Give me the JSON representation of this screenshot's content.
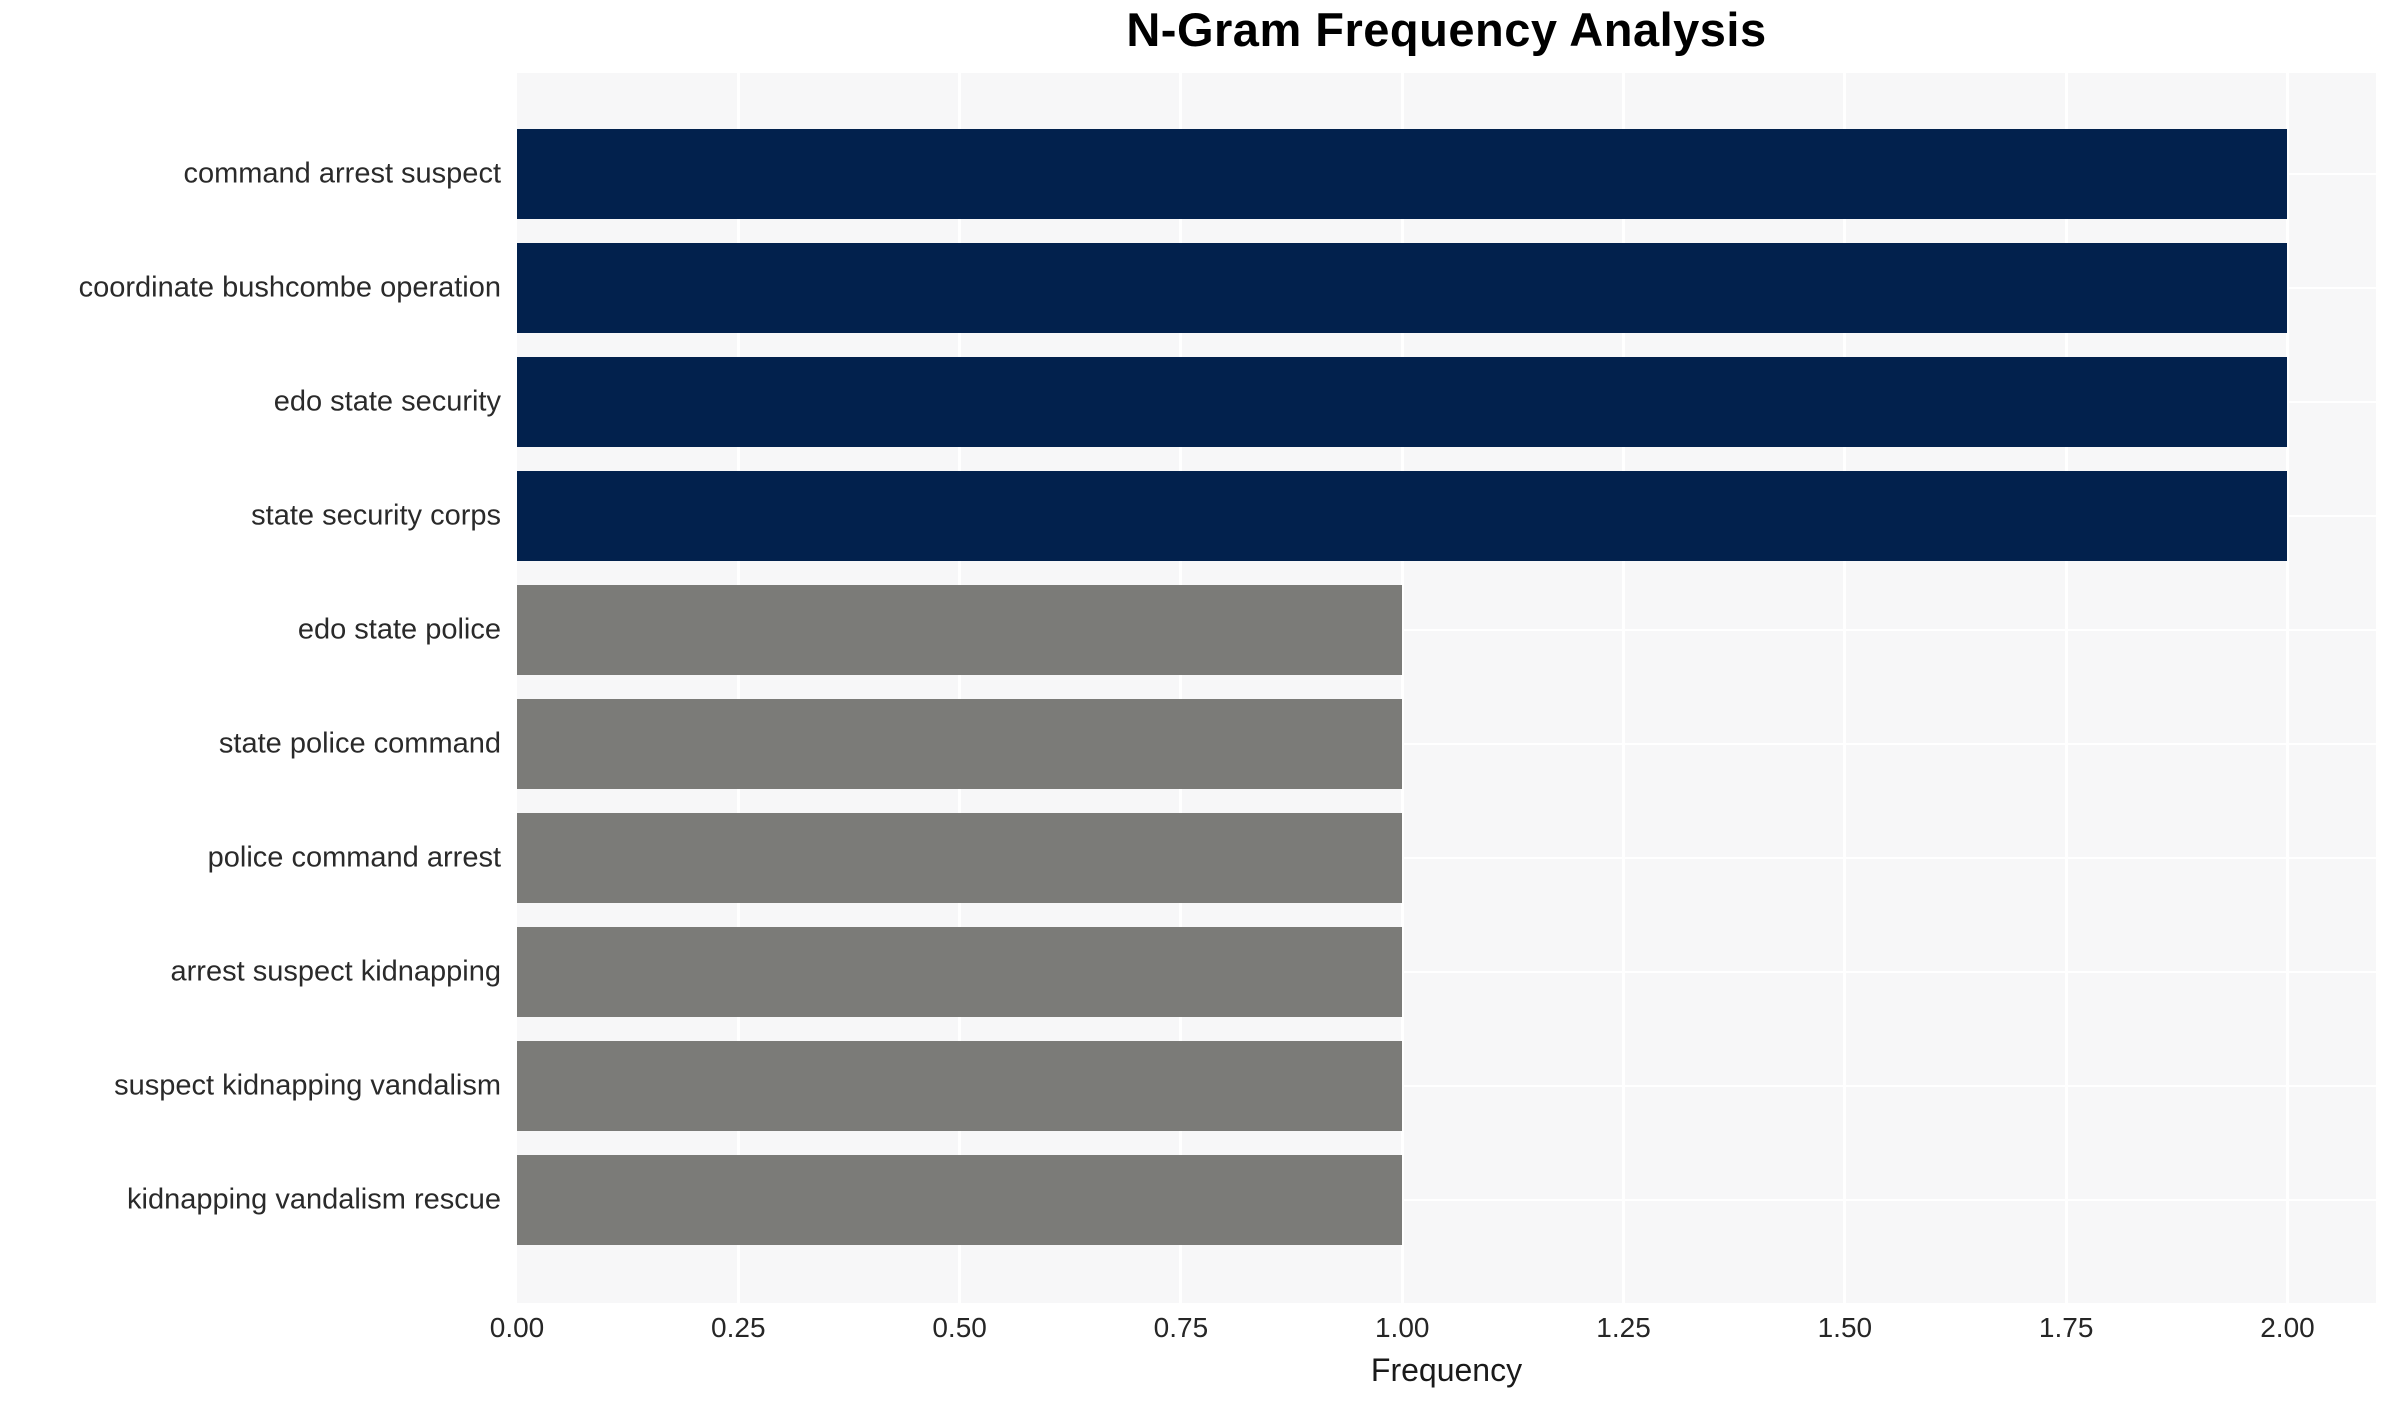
{
  "title": "N-Gram Frequency Analysis",
  "colors": {
    "bar_high": "#02214D",
    "bar_low": "#7B7B78",
    "plot_bg": "#F7F7F8",
    "grid": "#FFFFFF",
    "title_text": "#000000",
    "label_text": "#2A2A2A"
  },
  "chart_data": {
    "type": "bar",
    "orientation": "horizontal",
    "title": "N-Gram Frequency Analysis",
    "xlabel": "Frequency",
    "ylabel": "",
    "categories": [
      "command arrest suspect",
      "coordinate bushcombe operation",
      "edo state security",
      "state security corps",
      "edo state police",
      "state police command",
      "police command arrest",
      "arrest suspect kidnapping",
      "suspect kidnapping vandalism",
      "kidnapping vandalism rescue"
    ],
    "values": [
      2,
      2,
      2,
      2,
      1,
      1,
      1,
      1,
      1,
      1
    ],
    "bar_colors": [
      "#02214D",
      "#02214D",
      "#02214D",
      "#02214D",
      "#7B7B78",
      "#7B7B78",
      "#7B7B78",
      "#7B7B78",
      "#7B7B78",
      "#7B7B78"
    ],
    "xlim": [
      0,
      2.1
    ],
    "xticks": [
      0.0,
      0.25,
      0.5,
      0.75,
      1.0,
      1.25,
      1.5,
      1.75,
      2.0
    ],
    "xtick_labels": [
      "0.00",
      "0.25",
      "0.50",
      "0.75",
      "1.00",
      "1.25",
      "1.50",
      "1.75",
      "2.00"
    ],
    "grid": true,
    "legend": false
  }
}
